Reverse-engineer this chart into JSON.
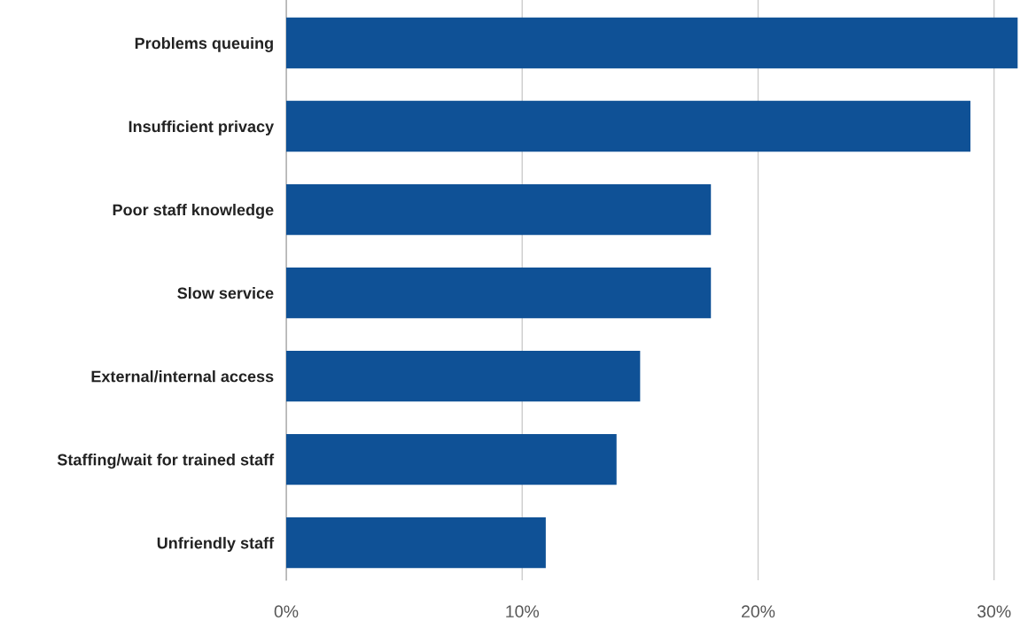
{
  "chart_data": {
    "type": "bar",
    "orientation": "horizontal",
    "categories": [
      "Problems queuing",
      "Insufficient privacy",
      "Poor staff knowledge",
      "Slow service",
      "External/internal access",
      "Staffing/wait for trained staff",
      "Unfriendly staff"
    ],
    "values": [
      31,
      29,
      18,
      18,
      15,
      14,
      11
    ],
    "color": "#0f5196",
    "xlim": [
      0,
      31.1
    ],
    "xticks": [
      {
        "value": 0,
        "label": "0%"
      },
      {
        "value": 10,
        "label": "10%"
      },
      {
        "value": 20,
        "label": "20%"
      },
      {
        "value": 30,
        "label": "30%"
      }
    ],
    "grid": "x"
  }
}
